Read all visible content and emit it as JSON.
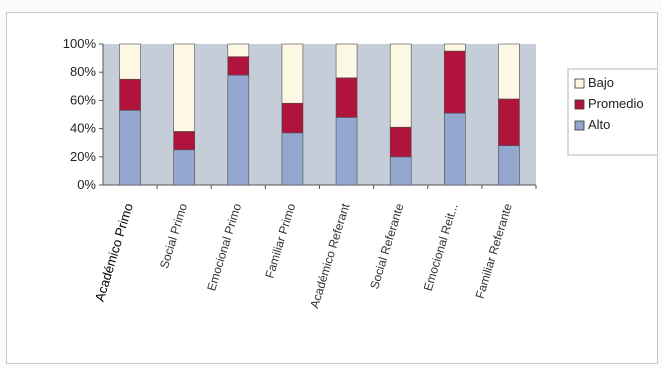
{
  "chart_data": {
    "type": "bar",
    "stacked": true,
    "percent": true,
    "categories": [
      "Académico Primo",
      "Social Primo",
      "Emocional Primo",
      "Familiar Primo",
      "Académico Referant",
      "Social Referante",
      "Emocional Reit...",
      "Familiar Referante"
    ],
    "series": [
      {
        "name": "Alto",
        "values": [
          53,
          25,
          78,
          37,
          48,
          20,
          51,
          28
        ]
      },
      {
        "name": "Promedio",
        "values": [
          22,
          13,
          13,
          21,
          28,
          21,
          44,
          33
        ]
      },
      {
        "name": "Bajo",
        "values": [
          25,
          62,
          9,
          42,
          24,
          59,
          5,
          39
        ]
      }
    ],
    "ylim": [
      0,
      100
    ],
    "yticks": [
      "0%",
      "20%",
      "40%",
      "60%",
      "80%",
      "100%"
    ],
    "legend_position": "right",
    "grid": false,
    "title": "",
    "xlabel": "",
    "ylabel": ""
  },
  "colors": {
    "alto": "#93a7cf",
    "promedio": "#b0143c",
    "bajo": "#fcf8e4",
    "plot_bg": "#c5cdd9"
  }
}
